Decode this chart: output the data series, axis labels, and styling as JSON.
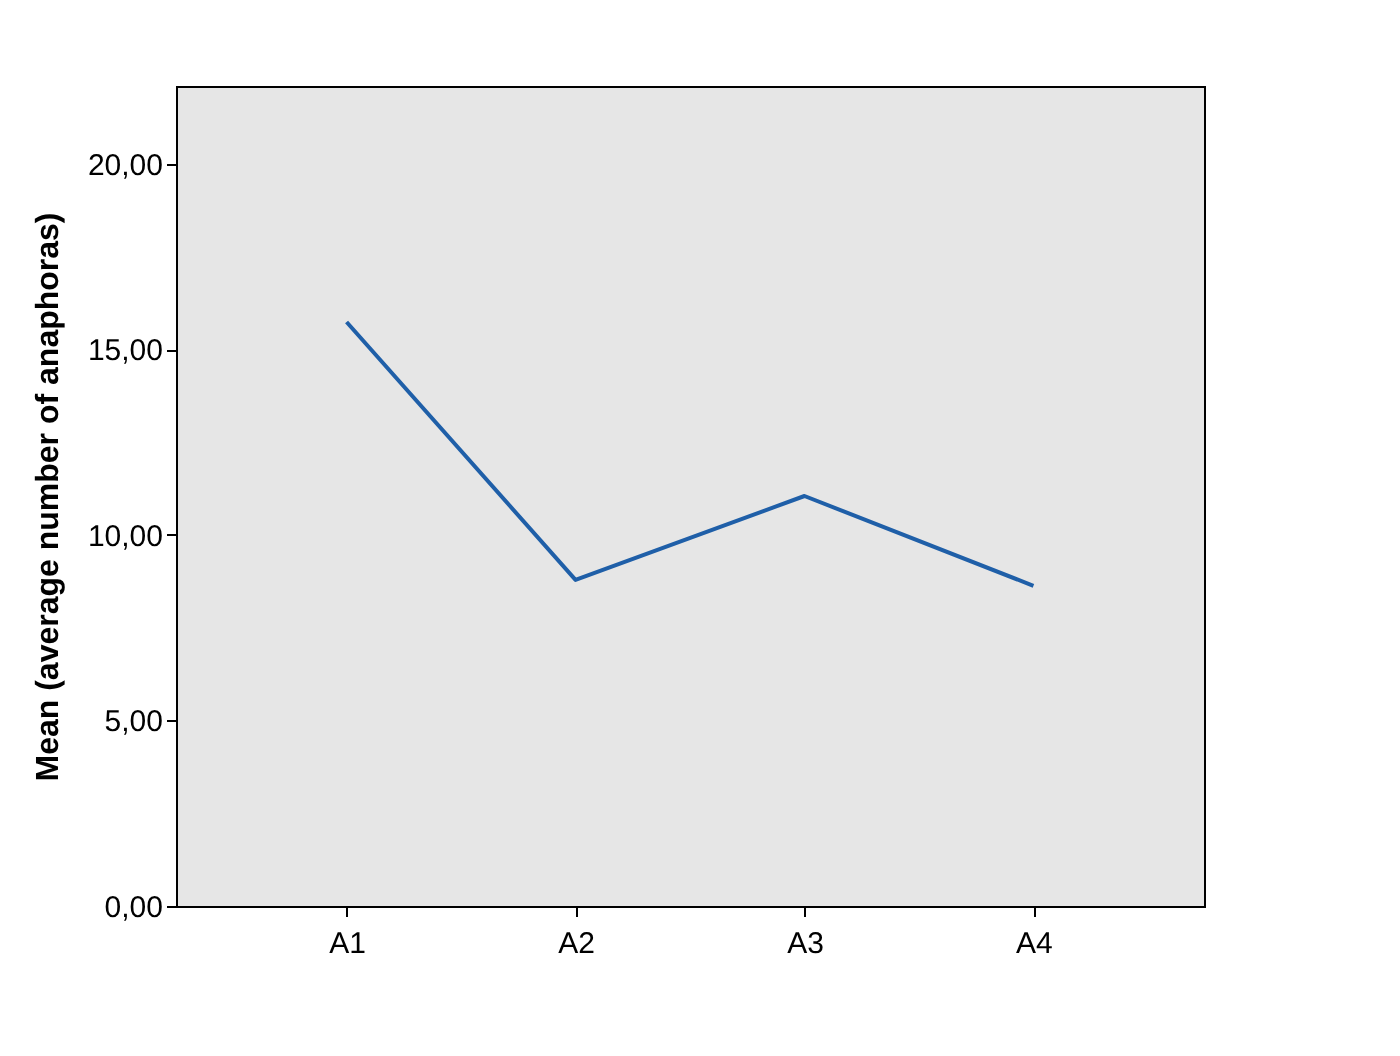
{
  "chart_data": {
    "type": "line",
    "ylabel": "Mean (average number of anaphoras)",
    "categories": [
      "A1",
      "A2",
      "A3",
      "A4"
    ],
    "series": [
      {
        "color": "#1f5fa8",
        "values": [
          15.74,
          8.79,
          11.05,
          8.63
        ]
      }
    ],
    "ylim": [
      0,
      22.1
    ],
    "yticks": [
      {
        "value": 0,
        "label": "0,00"
      },
      {
        "value": 5,
        "label": "5,00"
      },
      {
        "value": 10,
        "label": "10,00"
      },
      {
        "value": 15,
        "label": "15,00"
      },
      {
        "value": 20,
        "label": "20,00"
      }
    ],
    "grid": false,
    "marker": "none",
    "line_style": "solid"
  }
}
